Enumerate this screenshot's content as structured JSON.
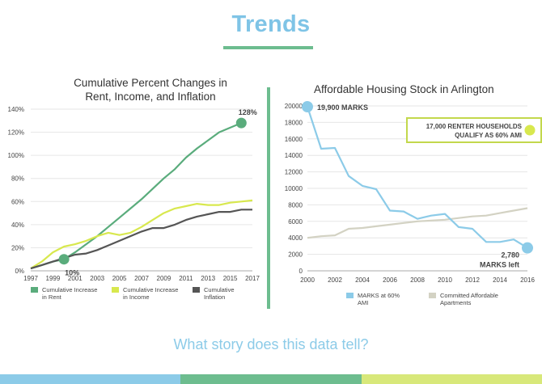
{
  "page": {
    "title": "Trends",
    "question": "What story does this data tell?",
    "footer_colors": [
      "#8ccbe8",
      "#6dbd8f",
      "#d8e87a"
    ]
  },
  "chart_data": [
    {
      "type": "line",
      "title": "Cumulative Percent Changes in Rent, Income, and Inflation",
      "x": [
        1997,
        1998,
        1999,
        2000,
        2001,
        2002,
        2003,
        2004,
        2005,
        2006,
        2007,
        2008,
        2009,
        2010,
        2011,
        2012,
        2013,
        2014,
        2015,
        2016,
        2017
      ],
      "x_ticks": [
        "1997",
        "1999",
        "2001",
        "2003",
        "2005",
        "2007",
        "2009",
        "2011",
        "2013",
        "2015",
        "2017"
      ],
      "ylim": [
        0,
        140
      ],
      "y_ticks": [
        0,
        20,
        40,
        60,
        80,
        100,
        120,
        140
      ],
      "y_tick_suffix": "%",
      "grid": true,
      "legend_position": "bottom",
      "series": [
        {
          "name": "Cumulative Increase in Rent",
          "color": "#5aac7c",
          "values": [
            2,
            5,
            8,
            10,
            16,
            23,
            30,
            38,
            46,
            54,
            62,
            71,
            80,
            88,
            98,
            106,
            113,
            120,
            124,
            128,
            null
          ]
        },
        {
          "name": "Cumulative Increase in Income",
          "color": "#d8e84e",
          "values": [
            2,
            8,
            16,
            21,
            23,
            26,
            30,
            33,
            31,
            33,
            38,
            44,
            50,
            54,
            56,
            58,
            57,
            57,
            59,
            60,
            61
          ]
        },
        {
          "name": "Cumulative Inflation",
          "color": "#555555",
          "values": [
            2,
            5,
            8,
            11,
            14,
            15,
            18,
            22,
            26,
            30,
            34,
            37,
            37,
            40,
            44,
            47,
            49,
            51,
            51,
            53,
            53
          ]
        }
      ],
      "annotations": [
        {
          "label": "128%",
          "x": 2016,
          "y": 128,
          "color": "#5aac7c"
        },
        {
          "label": "10%",
          "x": 2000,
          "y": 10,
          "color": "#5aac7c"
        }
      ]
    },
    {
      "type": "line",
      "title": "Affordable Housing Stock in Arlington",
      "x": [
        2000,
        2001,
        2002,
        2003,
        2004,
        2005,
        2006,
        2007,
        2008,
        2009,
        2010,
        2011,
        2012,
        2013,
        2014,
        2015,
        2016
      ],
      "x_ticks": [
        "2000",
        "2002",
        "2004",
        "2006",
        "2008",
        "2010",
        "2012",
        "2014",
        "2016"
      ],
      "ylim": [
        0,
        20000
      ],
      "y_ticks": [
        0,
        2000,
        4000,
        6000,
        8000,
        10000,
        12000,
        14000,
        16000,
        18000,
        20000
      ],
      "grid": true,
      "legend_position": "bottom",
      "series": [
        {
          "name": "MARKS at 60% AMI",
          "color": "#8ccbe8",
          "values": [
            19900,
            14800,
            14900,
            11500,
            10300,
            9900,
            7300,
            7200,
            6300,
            6700,
            6900,
            5300,
            5100,
            3500,
            3500,
            3800,
            2780
          ]
        },
        {
          "name": "Committed Affordable Apartments",
          "color": "#d3d2c3",
          "values": [
            4000,
            4200,
            4300,
            5100,
            5200,
            5400,
            5600,
            5800,
            6000,
            6100,
            6200,
            6400,
            6600,
            6700,
            7000,
            7300,
            7600
          ]
        }
      ],
      "annotations": [
        {
          "label": "19,900 MARKS",
          "x": 2000,
          "y": 19900,
          "color": "#8ccbe8"
        },
        {
          "label_lines": [
            "2,780",
            "MARKS left"
          ],
          "x": 2016,
          "y": 2780,
          "color": "#8ccbe8"
        }
      ],
      "callout": {
        "lines": [
          "17,000 RENTER HOUSEHOLDS",
          "QUALIFY AS 60% AMI"
        ],
        "border_color": "#c3d84c",
        "marker_color": "#d8e84e"
      }
    }
  ]
}
